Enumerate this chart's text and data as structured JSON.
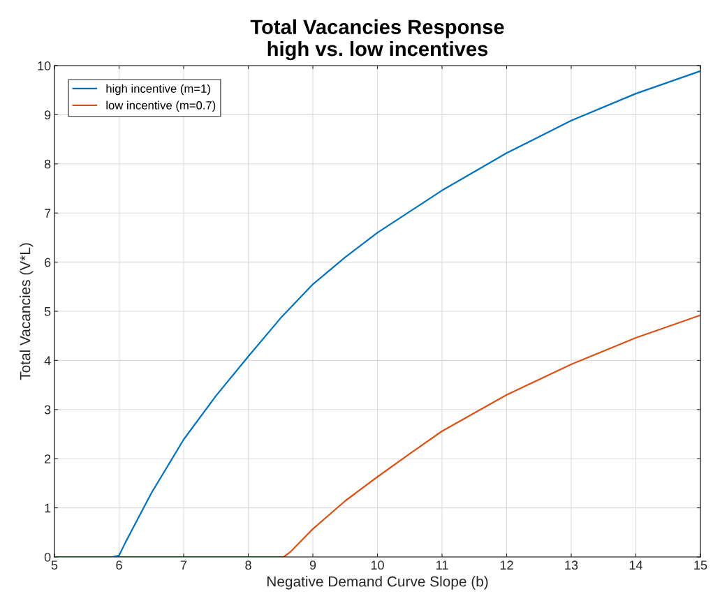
{
  "chart_data": {
    "type": "line",
    "title": "Total Vacancies Response\nhigh vs. low incentives",
    "xlabel": "Negative Demand Curve Slope (b)",
    "ylabel": "Total Vacancies (V*L)",
    "xlim": [
      5,
      15
    ],
    "ylim": [
      0,
      10
    ],
    "xticks": [
      5,
      6,
      7,
      8,
      9,
      10,
      11,
      12,
      13,
      14,
      15
    ],
    "yticks": [
      0,
      1,
      2,
      3,
      4,
      5,
      6,
      7,
      8,
      9,
      10
    ],
    "grid": true,
    "legend": "top left",
    "marker": "none",
    "line_style": "solid",
    "series": [
      {
        "name": "high incentive (m=1)",
        "color": "#0072bd",
        "x": [
          5,
          5.9,
          6.0,
          6.1,
          6.5,
          7,
          7.5,
          8,
          8.5,
          9,
          9.5,
          10,
          11,
          12,
          13,
          14,
          15
        ],
        "values": [
          0,
          0,
          0.03,
          0.3,
          1.3,
          2.39,
          3.28,
          4.08,
          4.86,
          5.55,
          6.1,
          6.6,
          7.46,
          8.22,
          8.88,
          9.43,
          9.89
        ]
      },
      {
        "name": "low incentive (m=0.7)",
        "color": "#d95319",
        "x": [
          5,
          8.55,
          8.65,
          9,
          9.5,
          10,
          10.5,
          11,
          12,
          13,
          14,
          15
        ],
        "values": [
          0,
          0,
          0.1,
          0.57,
          1.14,
          1.63,
          2.1,
          2.56,
          3.3,
          3.92,
          4.46,
          4.92
        ]
      }
    ]
  }
}
